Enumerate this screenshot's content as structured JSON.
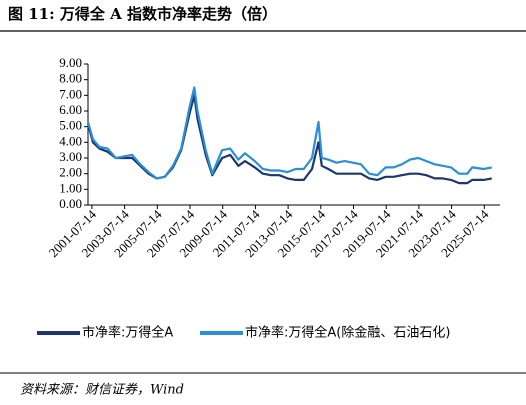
{
  "chart_data": {
    "type": "line",
    "title": "图 11: 万得全 A 指数市净率走势（倍）",
    "source": "资料来源：财信证券，Wind",
    "x": [
      2001.3,
      2001.6,
      2002.0,
      2002.5,
      2003.0,
      2003.5,
      2004.0,
      2004.5,
      2005.0,
      2005.5,
      2006.0,
      2006.5,
      2007.0,
      2007.5,
      2007.8,
      2008.0,
      2008.5,
      2008.9,
      2009.5,
      2010.0,
      2010.5,
      2010.9,
      2011.5,
      2012.0,
      2012.5,
      2013.0,
      2013.5,
      2014.0,
      2014.5,
      2015.0,
      2015.4,
      2015.6,
      2016.0,
      2016.5,
      2017.0,
      2017.5,
      2018.0,
      2018.5,
      2019.0,
      2019.5,
      2020.0,
      2020.5,
      2021.0,
      2021.5,
      2022.0,
      2022.5,
      2023.0,
      2023.5,
      2024.0,
      2024.5,
      2024.8,
      2025.5,
      2026.0
    ],
    "series": [
      {
        "name": "市净率:万得全A",
        "color": "#1b3670",
        "values": [
          5.2,
          4.0,
          3.6,
          3.4,
          3.0,
          3.0,
          3.0,
          2.5,
          2.0,
          1.7,
          1.8,
          2.4,
          3.5,
          5.8,
          7.0,
          5.5,
          3.2,
          1.9,
          3.0,
          3.2,
          2.5,
          2.8,
          2.4,
          2.0,
          1.9,
          1.9,
          1.7,
          1.6,
          1.6,
          2.3,
          4.0,
          2.5,
          2.3,
          2.0,
          2.0,
          2.0,
          2.0,
          1.7,
          1.6,
          1.8,
          1.8,
          1.9,
          2.0,
          2.0,
          1.9,
          1.7,
          1.7,
          1.6,
          1.4,
          1.4,
          1.6,
          1.6,
          1.7
        ]
      },
      {
        "name": "市净率:万得全A(除金融、石油石化)",
        "color": "#2a8ed8",
        "values": [
          5.3,
          4.2,
          3.7,
          3.6,
          3.0,
          3.1,
          3.2,
          2.6,
          2.1,
          1.7,
          1.8,
          2.5,
          3.6,
          6.2,
          7.5,
          6.0,
          3.5,
          2.0,
          3.5,
          3.6,
          2.9,
          3.3,
          2.8,
          2.3,
          2.2,
          2.2,
          2.1,
          2.3,
          2.3,
          3.0,
          5.3,
          3.0,
          2.9,
          2.7,
          2.8,
          2.7,
          2.6,
          2.0,
          1.9,
          2.4,
          2.4,
          2.6,
          2.9,
          3.0,
          2.8,
          2.6,
          2.5,
          2.4,
          2.0,
          2.0,
          2.4,
          2.3,
          2.4
        ]
      }
    ],
    "xlim": [
      2001.3,
      2026.5
    ],
    "xticks": [
      {
        "value": 2001.54,
        "label": "2001-07-14"
      },
      {
        "value": 2003.54,
        "label": "2003-07-14"
      },
      {
        "value": 2005.54,
        "label": "2005-07-14"
      },
      {
        "value": 2007.54,
        "label": "2007-07-14"
      },
      {
        "value": 2009.54,
        "label": "2009-07-14"
      },
      {
        "value": 2011.54,
        "label": "2011-07-14"
      },
      {
        "value": 2013.54,
        "label": "2013-07-14"
      },
      {
        "value": 2015.54,
        "label": "2015-07-14"
      },
      {
        "value": 2017.54,
        "label": "2017-07-14"
      },
      {
        "value": 2019.54,
        "label": "2019-07-14"
      },
      {
        "value": 2021.54,
        "label": "2021-07-14"
      },
      {
        "value": 2023.54,
        "label": "2023-07-14"
      },
      {
        "value": 2025.54,
        "label": "2025-07-14"
      }
    ],
    "ylim": [
      0,
      9
    ],
    "yticks": [
      {
        "value": 0,
        "label": "0.00"
      },
      {
        "value": 1,
        "label": "1.00"
      },
      {
        "value": 2,
        "label": "2.00"
      },
      {
        "value": 3,
        "label": "3.00"
      },
      {
        "value": 4,
        "label": "4.00"
      },
      {
        "value": 5,
        "label": "5.00"
      },
      {
        "value": 6,
        "label": "6.00"
      },
      {
        "value": 7,
        "label": "7.00"
      },
      {
        "value": 8,
        "label": "8.00"
      },
      {
        "value": 9,
        "label": "9.00"
      }
    ],
    "legend": "bottom"
  }
}
